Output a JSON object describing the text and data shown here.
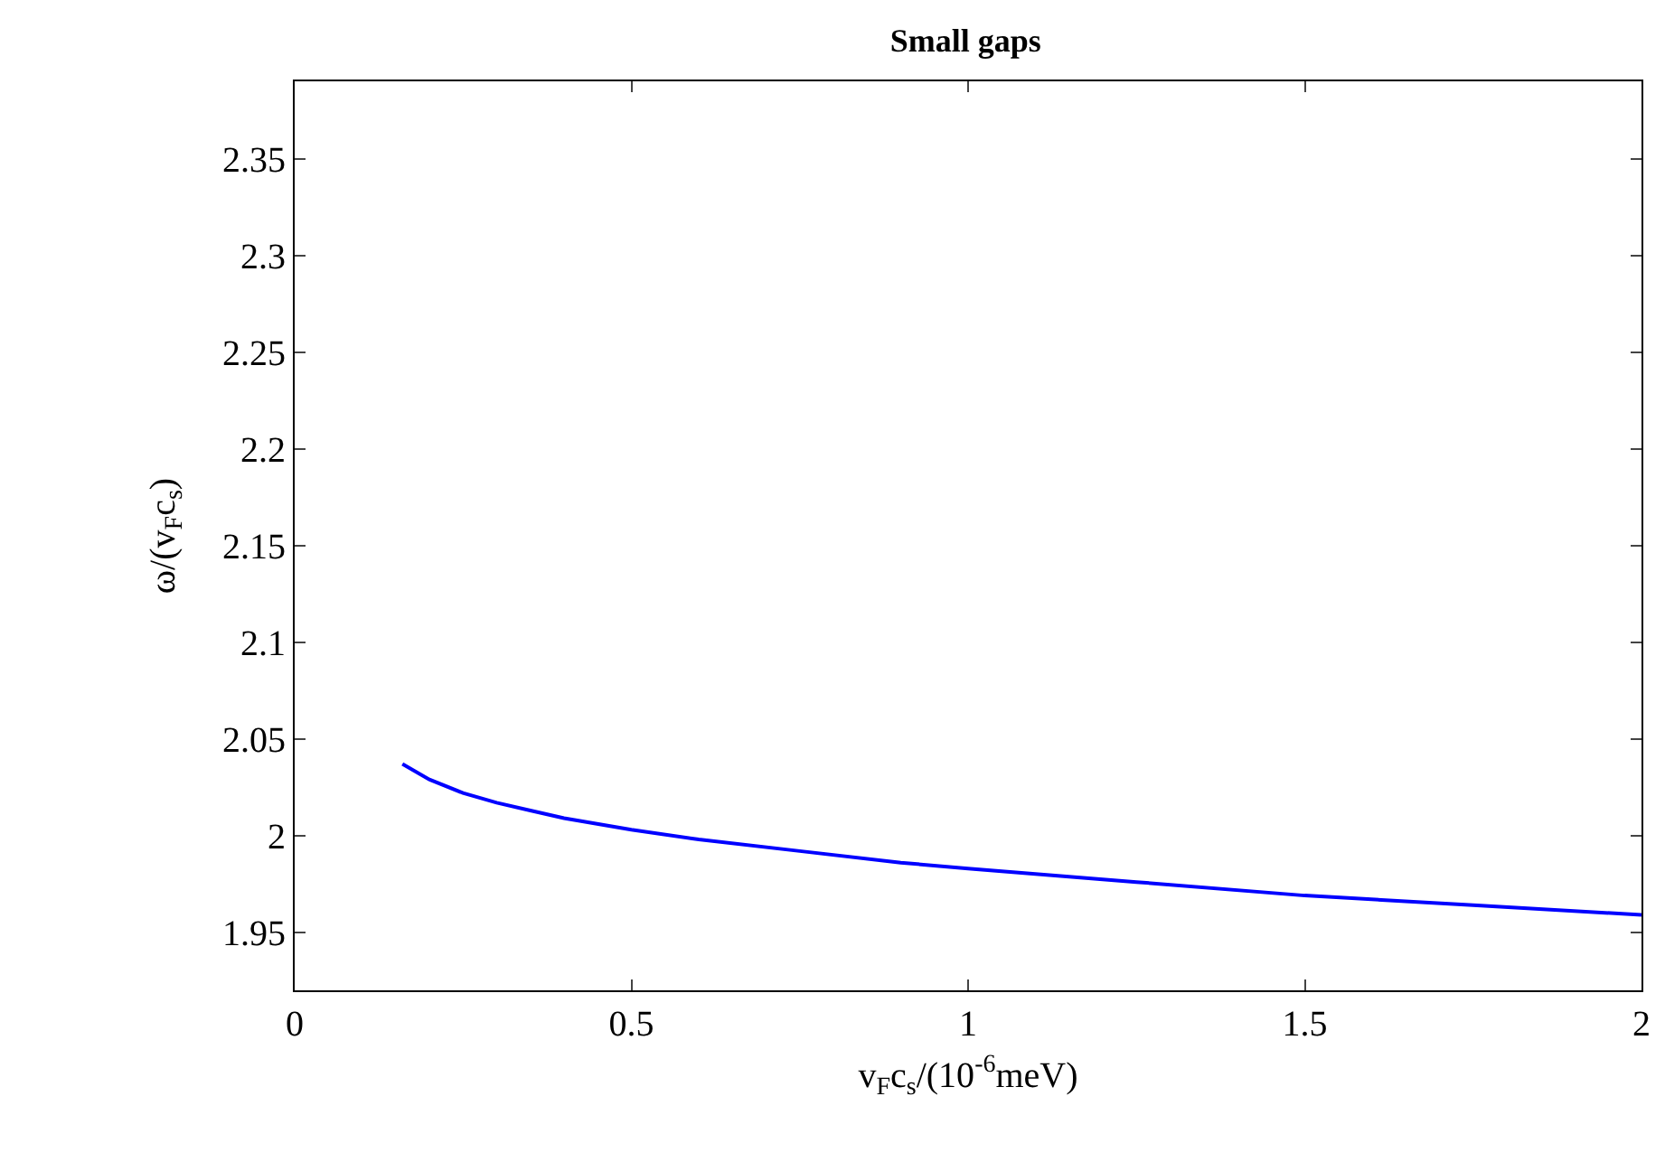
{
  "chart_data": {
    "type": "line",
    "title": "Small gaps",
    "xlabel": "v$_{F}$c$_{s}$/(10$^{-6}$meV)",
    "ylabel": "ω/(v$_{F}$c$_{s}$)",
    "x": [
      0.16,
      0.2,
      0.25,
      0.3,
      0.35,
      0.4,
      0.5,
      0.6,
      0.75,
      0.9,
      1,
      1.25,
      1.5,
      1.75,
      2
    ],
    "series": [
      {
        "color": "#0000ff",
        "values": [
          2.037,
          2.029,
          2.022,
          2.017,
          2.013,
          2.009,
          2.003,
          1.998,
          1.992,
          1.986,
          1.983,
          1.976,
          1.969,
          1.964,
          1.959
        ]
      }
    ],
    "xlim": [
      0,
      2
    ],
    "xticks": [
      0,
      0.5,
      1,
      1.5,
      2
    ],
    "ylim": [
      1.92,
      2.39
    ],
    "yticks": [
      1.95,
      2,
      2.05,
      2.1,
      2.15,
      2.2,
      2.25,
      2.3,
      2.35
    ],
    "grid": false,
    "marker": "none",
    "line_style": "solid"
  }
}
